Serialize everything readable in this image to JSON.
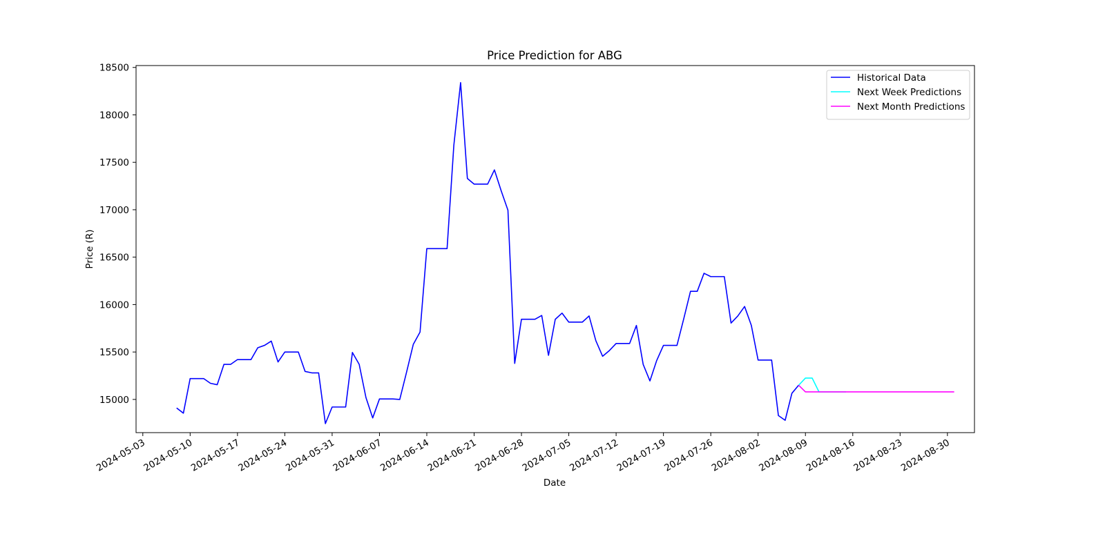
{
  "chart_data": {
    "type": "line",
    "title": "Price Prediction for ABG",
    "xlabel": "Date",
    "ylabel": "Price (R)",
    "xlim": [
      "2024-05-02",
      "2024-09-03"
    ],
    "ylim": [
      14650,
      18520
    ],
    "x_ticks": [
      "2024-05-03",
      "2024-05-10",
      "2024-05-17",
      "2024-05-24",
      "2024-05-31",
      "2024-06-07",
      "2024-06-14",
      "2024-06-21",
      "2024-06-28",
      "2024-07-05",
      "2024-07-12",
      "2024-07-19",
      "2024-07-26",
      "2024-08-02",
      "2024-08-09",
      "2024-08-16",
      "2024-08-23",
      "2024-08-30"
    ],
    "y_ticks": [
      15000,
      15500,
      16000,
      16500,
      17000,
      17500,
      18000,
      18500
    ],
    "grid": false,
    "legend_position": "top-right",
    "series": [
      {
        "name": "Historical Data",
        "color": "#0000ff",
        "points": [
          [
            "2024-05-08",
            14910
          ],
          [
            "2024-05-09",
            14855
          ],
          [
            "2024-05-10",
            15220
          ],
          [
            "2024-05-11",
            15220
          ],
          [
            "2024-05-12",
            15220
          ],
          [
            "2024-05-13",
            15170
          ],
          [
            "2024-05-14",
            15155
          ],
          [
            "2024-05-15",
            15370
          ],
          [
            "2024-05-16",
            15370
          ],
          [
            "2024-05-17",
            15420
          ],
          [
            "2024-05-18",
            15420
          ],
          [
            "2024-05-19",
            15420
          ],
          [
            "2024-05-20",
            15545
          ],
          [
            "2024-05-21",
            15570
          ],
          [
            "2024-05-22",
            15615
          ],
          [
            "2024-05-23",
            15395
          ],
          [
            "2024-05-24",
            15500
          ],
          [
            "2024-05-25",
            15500
          ],
          [
            "2024-05-26",
            15500
          ],
          [
            "2024-05-27",
            15295
          ],
          [
            "2024-05-28",
            15280
          ],
          [
            "2024-05-29",
            15280
          ],
          [
            "2024-05-30",
            14745
          ],
          [
            "2024-05-31",
            14920
          ],
          [
            "2024-06-01",
            14920
          ],
          [
            "2024-06-02",
            14920
          ],
          [
            "2024-06-03",
            15495
          ],
          [
            "2024-06-04",
            15370
          ],
          [
            "2024-06-05",
            15020
          ],
          [
            "2024-06-06",
            14805
          ],
          [
            "2024-06-07",
            15005
          ],
          [
            "2024-06-08",
            15005
          ],
          [
            "2024-06-09",
            15005
          ],
          [
            "2024-06-10",
            15000
          ],
          [
            "2024-06-11",
            15285
          ],
          [
            "2024-06-12",
            15580
          ],
          [
            "2024-06-13",
            15710
          ],
          [
            "2024-06-14",
            16590
          ],
          [
            "2024-06-15",
            16590
          ],
          [
            "2024-06-16",
            16590
          ],
          [
            "2024-06-17",
            16590
          ],
          [
            "2024-06-18",
            17680
          ],
          [
            "2024-06-19",
            18340
          ],
          [
            "2024-06-20",
            17330
          ],
          [
            "2024-06-21",
            17270
          ],
          [
            "2024-06-22",
            17270
          ],
          [
            "2024-06-23",
            17270
          ],
          [
            "2024-06-24",
            17420
          ],
          [
            "2024-06-25",
            17200
          ],
          [
            "2024-06-26",
            16995
          ],
          [
            "2024-06-27",
            15380
          ],
          [
            "2024-06-28",
            15845
          ],
          [
            "2024-06-29",
            15845
          ],
          [
            "2024-06-30",
            15845
          ],
          [
            "2024-07-01",
            15885
          ],
          [
            "2024-07-02",
            15465
          ],
          [
            "2024-07-03",
            15845
          ],
          [
            "2024-07-04",
            15910
          ],
          [
            "2024-07-05",
            15815
          ],
          [
            "2024-07-06",
            15815
          ],
          [
            "2024-07-07",
            15815
          ],
          [
            "2024-07-08",
            15880
          ],
          [
            "2024-07-09",
            15620
          ],
          [
            "2024-07-10",
            15455
          ],
          [
            "2024-07-11",
            15515
          ],
          [
            "2024-07-12",
            15590
          ],
          [
            "2024-07-13",
            15590
          ],
          [
            "2024-07-14",
            15590
          ],
          [
            "2024-07-15",
            15780
          ],
          [
            "2024-07-16",
            15370
          ],
          [
            "2024-07-17",
            15195
          ],
          [
            "2024-07-18",
            15410
          ],
          [
            "2024-07-19",
            15570
          ],
          [
            "2024-07-20",
            15570
          ],
          [
            "2024-07-21",
            15570
          ],
          [
            "2024-07-22",
            15850
          ],
          [
            "2024-07-23",
            16140
          ],
          [
            "2024-07-24",
            16140
          ],
          [
            "2024-07-25",
            16330
          ],
          [
            "2024-07-26",
            16295
          ],
          [
            "2024-07-27",
            16295
          ],
          [
            "2024-07-28",
            16295
          ],
          [
            "2024-07-29",
            15805
          ],
          [
            "2024-07-30",
            15880
          ],
          [
            "2024-07-31",
            15980
          ],
          [
            "2024-08-01",
            15780
          ],
          [
            "2024-08-02",
            15415
          ],
          [
            "2024-08-03",
            15415
          ],
          [
            "2024-08-04",
            15415
          ],
          [
            "2024-08-05",
            14830
          ],
          [
            "2024-08-06",
            14780
          ],
          [
            "2024-08-07",
            15065
          ],
          [
            "2024-08-08",
            15150
          ]
        ]
      },
      {
        "name": "Next Week Predictions",
        "color": "#00ffff",
        "points": [
          [
            "2024-08-08",
            15150
          ],
          [
            "2024-08-09",
            15225
          ],
          [
            "2024-08-10",
            15225
          ],
          [
            "2024-08-11",
            15080
          ],
          [
            "2024-08-12",
            15080
          ],
          [
            "2024-08-13",
            15080
          ],
          [
            "2024-08-14",
            15080
          ],
          [
            "2024-08-15",
            15080
          ]
        ]
      },
      {
        "name": "Next Month Predictions",
        "color": "#ff00ff",
        "points": [
          [
            "2024-08-08",
            15150
          ],
          [
            "2024-08-09",
            15080
          ],
          [
            "2024-08-31",
            15080
          ]
        ]
      }
    ]
  }
}
